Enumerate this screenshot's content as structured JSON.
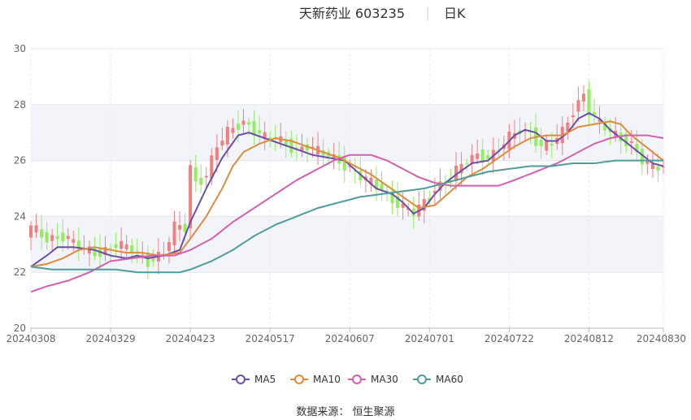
{
  "chart_data": {
    "type": "candlestick",
    "title": "天新药业 603235",
    "period_label": "日K",
    "source_label": "数据来源： 恒生聚源",
    "ylim": [
      20,
      30
    ],
    "y_ticks": [
      "20",
      "22",
      "24",
      "26",
      "28",
      "30"
    ],
    "x_tick_labels": [
      "20240308",
      "20240329",
      "20240423",
      "20240517",
      "20240607",
      "20240701",
      "20240722",
      "20240812",
      "20240830"
    ],
    "x_tick_index": [
      0,
      15,
      30,
      45,
      60,
      75,
      90,
      105,
      119
    ],
    "grid": true,
    "legend_position": "bottom",
    "colors": {
      "up": "#f08080",
      "down": "#90ee60",
      "MA5": "#6b4ea8",
      "MA10": "#e08a3c",
      "MA30": "#d45fae",
      "MA60": "#4f9c9c"
    },
    "ma_legend": [
      "MA5",
      "MA10",
      "MA30",
      "MA60"
    ],
    "close_anchors": [
      [
        0,
        23.6
      ],
      [
        3,
        23.2
      ],
      [
        6,
        23.3
      ],
      [
        10,
        22.8
      ],
      [
        13,
        22.7
      ],
      [
        16,
        23.0
      ],
      [
        19,
        22.8
      ],
      [
        22,
        22.4
      ],
      [
        25,
        22.7
      ],
      [
        27,
        23.6
      ],
      [
        29,
        23.6
      ],
      [
        30,
        25.8
      ],
      [
        31,
        25.2
      ],
      [
        33,
        25.5
      ],
      [
        35,
        26.5
      ],
      [
        37,
        27.0
      ],
      [
        39,
        27.3
      ],
      [
        40,
        27.4
      ],
      [
        42,
        27.1
      ],
      [
        44,
        26.8
      ],
      [
        46,
        26.8
      ],
      [
        48,
        26.6
      ],
      [
        50,
        26.4
      ],
      [
        52,
        26.5
      ],
      [
        54,
        26.3
      ],
      [
        56,
        26.2
      ],
      [
        58,
        26.0
      ],
      [
        60,
        25.7
      ],
      [
        62,
        25.4
      ],
      [
        64,
        25.2
      ],
      [
        66,
        25.0
      ],
      [
        68,
        24.6
      ],
      [
        70,
        24.3
      ],
      [
        72,
        24.1
      ],
      [
        74,
        24.5
      ],
      [
        76,
        25.0
      ],
      [
        78,
        25.3
      ],
      [
        80,
        25.6
      ],
      [
        82,
        26.0
      ],
      [
        84,
        26.2
      ],
      [
        86,
        26.1
      ],
      [
        88,
        26.4
      ],
      [
        90,
        26.8
      ],
      [
        92,
        27.1
      ],
      [
        94,
        27.0
      ],
      [
        96,
        26.5
      ],
      [
        98,
        26.6
      ],
      [
        100,
        27.0
      ],
      [
        102,
        27.8
      ],
      [
        104,
        28.4
      ],
      [
        105,
        27.8
      ],
      [
        107,
        27.3
      ],
      [
        109,
        27.0
      ],
      [
        111,
        26.8
      ],
      [
        113,
        26.6
      ],
      [
        115,
        26.0
      ],
      [
        117,
        25.7
      ],
      [
        119,
        25.8
      ]
    ],
    "ma_anchors": {
      "MA5": [
        [
          0,
          22.2
        ],
        [
          3,
          22.6
        ],
        [
          5,
          22.9
        ],
        [
          8,
          22.9
        ],
        [
          12,
          22.8
        ],
        [
          15,
          22.6
        ],
        [
          18,
          22.5
        ],
        [
          20,
          22.6
        ],
        [
          22,
          22.5
        ],
        [
          25,
          22.6
        ],
        [
          28,
          22.8
        ],
        [
          30,
          23.8
        ],
        [
          33,
          25.0
        ],
        [
          36,
          26.1
        ],
        [
          39,
          26.9
        ],
        [
          41,
          27.0
        ],
        [
          44,
          26.8
        ],
        [
          47,
          26.6
        ],
        [
          50,
          26.4
        ],
        [
          53,
          26.2
        ],
        [
          56,
          26.1
        ],
        [
          59,
          26.0
        ],
        [
          62,
          25.5
        ],
        [
          65,
          25.0
        ],
        [
          68,
          24.8
        ],
        [
          70,
          24.5
        ],
        [
          72,
          24.1
        ],
        [
          74,
          24.3
        ],
        [
          76,
          24.8
        ],
        [
          78,
          25.2
        ],
        [
          80,
          25.5
        ],
        [
          83,
          25.9
        ],
        [
          86,
          26.0
        ],
        [
          89,
          26.5
        ],
        [
          91,
          26.9
        ],
        [
          93,
          27.1
        ],
        [
          95,
          27.0
        ],
        [
          97,
          26.7
        ],
        [
          99,
          26.7
        ],
        [
          101,
          27.0
        ],
        [
          103,
          27.5
        ],
        [
          105,
          27.7
        ],
        [
          107,
          27.5
        ],
        [
          109,
          27.1
        ],
        [
          111,
          26.8
        ],
        [
          113,
          26.5
        ],
        [
          115,
          26.2
        ],
        [
          117,
          25.9
        ],
        [
          119,
          25.8
        ]
      ],
      "MA10": [
        [
          0,
          22.2
        ],
        [
          3,
          22.3
        ],
        [
          6,
          22.5
        ],
        [
          9,
          22.8
        ],
        [
          12,
          22.9
        ],
        [
          15,
          22.8
        ],
        [
          18,
          22.7
        ],
        [
          21,
          22.7
        ],
        [
          24,
          22.6
        ],
        [
          28,
          22.7
        ],
        [
          30,
          23.2
        ],
        [
          33,
          24.0
        ],
        [
          36,
          25.0
        ],
        [
          38,
          25.8
        ],
        [
          40,
          26.3
        ],
        [
          43,
          26.6
        ],
        [
          46,
          26.8
        ],
        [
          49,
          26.7
        ],
        [
          52,
          26.5
        ],
        [
          55,
          26.3
        ],
        [
          58,
          26.1
        ],
        [
          61,
          25.8
        ],
        [
          64,
          25.5
        ],
        [
          67,
          25.1
        ],
        [
          70,
          24.7
        ],
        [
          73,
          24.3
        ],
        [
          76,
          24.4
        ],
        [
          79,
          24.9
        ],
        [
          82,
          25.4
        ],
        [
          85,
          25.7
        ],
        [
          88,
          26.1
        ],
        [
          91,
          26.5
        ],
        [
          94,
          26.8
        ],
        [
          97,
          26.9
        ],
        [
          100,
          26.9
        ],
        [
          103,
          27.2
        ],
        [
          106,
          27.3
        ],
        [
          109,
          27.4
        ],
        [
          111,
          27.3
        ],
        [
          113,
          26.9
        ],
        [
          115,
          26.6
        ],
        [
          117,
          26.3
        ],
        [
          119,
          26.0
        ]
      ],
      "MA30": [
        [
          0,
          21.3
        ],
        [
          3,
          21.5
        ],
        [
          7,
          21.7
        ],
        [
          11,
          22.0
        ],
        [
          15,
          22.4
        ],
        [
          19,
          22.5
        ],
        [
          23,
          22.6
        ],
        [
          27,
          22.6
        ],
        [
          30,
          22.8
        ],
        [
          34,
          23.2
        ],
        [
          38,
          23.8
        ],
        [
          42,
          24.3
        ],
        [
          46,
          24.8
        ],
        [
          50,
          25.3
        ],
        [
          54,
          25.7
        ],
        [
          57,
          26.0
        ],
        [
          60,
          26.2
        ],
        [
          64,
          26.2
        ],
        [
          67,
          26.0
        ],
        [
          70,
          25.7
        ],
        [
          73,
          25.4
        ],
        [
          76,
          25.2
        ],
        [
          79,
          25.1
        ],
        [
          82,
          25.1
        ],
        [
          85,
          25.1
        ],
        [
          88,
          25.1
        ],
        [
          91,
          25.3
        ],
        [
          95,
          25.6
        ],
        [
          99,
          25.9
        ],
        [
          103,
          26.3
        ],
        [
          106,
          26.6
        ],
        [
          109,
          26.8
        ],
        [
          112,
          26.9
        ],
        [
          116,
          26.9
        ],
        [
          119,
          26.8
        ]
      ],
      "MA60": [
        [
          0,
          22.2
        ],
        [
          4,
          22.1
        ],
        [
          8,
          22.1
        ],
        [
          12,
          22.1
        ],
        [
          16,
          22.1
        ],
        [
          20,
          22.0
        ],
        [
          24,
          22.0
        ],
        [
          28,
          22.0
        ],
        [
          30,
          22.1
        ],
        [
          34,
          22.4
        ],
        [
          38,
          22.8
        ],
        [
          42,
          23.3
        ],
        [
          46,
          23.7
        ],
        [
          50,
          24.0
        ],
        [
          54,
          24.3
        ],
        [
          58,
          24.5
        ],
        [
          62,
          24.7
        ],
        [
          66,
          24.8
        ],
        [
          70,
          24.9
        ],
        [
          74,
          25.0
        ],
        [
          78,
          25.2
        ],
        [
          82,
          25.4
        ],
        [
          86,
          25.6
        ],
        [
          90,
          25.7
        ],
        [
          94,
          25.8
        ],
        [
          98,
          25.8
        ],
        [
          102,
          25.9
        ],
        [
          106,
          25.9
        ],
        [
          110,
          26.0
        ],
        [
          114,
          26.0
        ],
        [
          119,
          26.0
        ]
      ]
    }
  }
}
